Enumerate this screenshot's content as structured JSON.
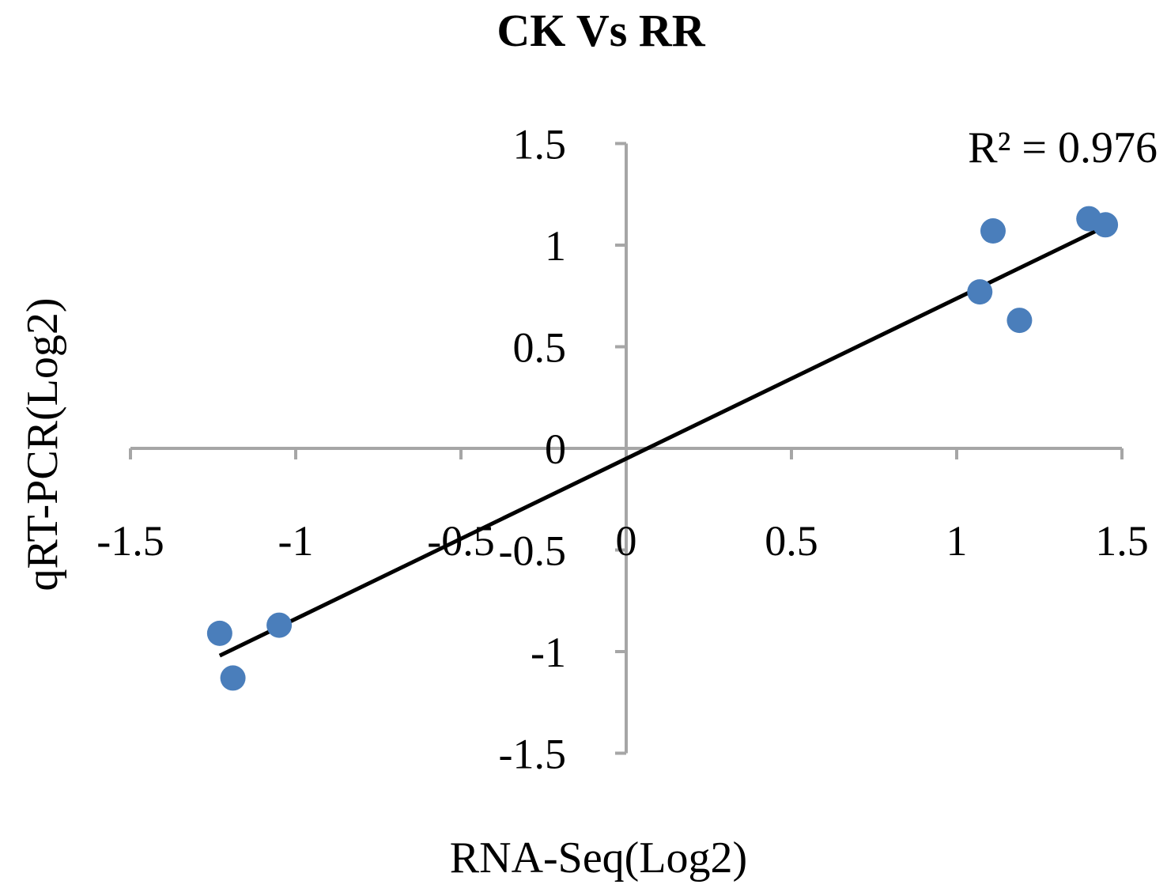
{
  "chart_data": {
    "type": "scatter",
    "title": "CK Vs RR",
    "xlabel": "RNA-Seq(Log2)",
    "ylabel": "qRT-PCR(Log2)",
    "xlim": [
      -1.5,
      1.5
    ],
    "ylim": [
      -1.5,
      1.5
    ],
    "x_ticks": [
      "-1.5",
      "-1",
      "-0.5",
      "0",
      "0.5",
      "1",
      "1.5"
    ],
    "y_ticks": [
      "1.5",
      "1",
      "0.5",
      "0",
      "-0.5",
      "-1",
      "-1.5"
    ],
    "points": [
      {
        "x": -1.23,
        "y": -0.91
      },
      {
        "x": -1.19,
        "y": -1.13
      },
      {
        "x": -1.05,
        "y": -0.87
      },
      {
        "x": 1.07,
        "y": 0.77
      },
      {
        "x": 1.11,
        "y": 1.07
      },
      {
        "x": 1.19,
        "y": 0.63
      },
      {
        "x": 1.4,
        "y": 1.13
      },
      {
        "x": 1.45,
        "y": 1.1
      }
    ],
    "trendline": {
      "x": [
        -1.23,
        1.46
      ],
      "y": [
        -1.02,
        1.1
      ]
    },
    "annotation": "R² = 0.976",
    "grid": false,
    "legend": "none",
    "colors": {
      "point": "#4a7ebb",
      "axis": "#a6a6a6",
      "trend": "#000000"
    }
  }
}
